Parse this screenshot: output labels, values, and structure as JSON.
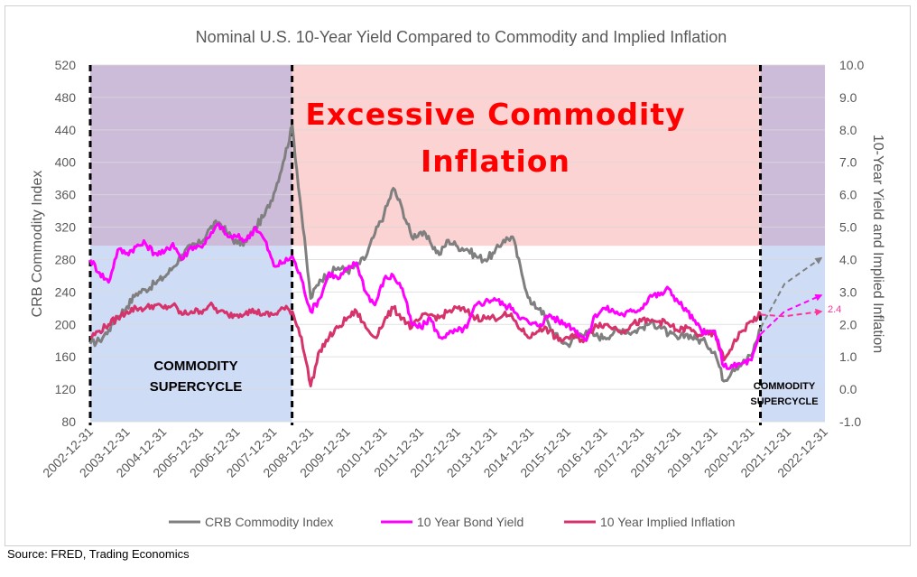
{
  "chart_data": {
    "type": "line",
    "title": "Nominal U.S. 10-Year Yield Compared to Commodity and Implied Inflation",
    "ylabel": "CRB Commodity Index",
    "ylabel_right": "10-Year Yield and Implied Inflation",
    "ylim": [
      80,
      520
    ],
    "ylim_right": [
      -1.0,
      10.0
    ],
    "yticks": [
      80,
      120,
      160,
      200,
      240,
      280,
      320,
      360,
      400,
      440,
      480,
      520
    ],
    "yticks_right": [
      "-1.0",
      "0.0",
      "1.0",
      "2.0",
      "3.0",
      "4.0",
      "5.0",
      "6.0",
      "7.0",
      "8.0",
      "9.0",
      "10.0"
    ],
    "xticks": [
      "2002-12-31",
      "2003-12-31",
      "2004-12-31",
      "2005-12-31",
      "2006-12-31",
      "2007-12-31",
      "2008-12-31",
      "2009-12-31",
      "2010-12-31",
      "2011-12-31",
      "2012-12-31",
      "2013-12-31",
      "2014-12-31",
      "2015-12-31",
      "2016-12-31",
      "2017-12-31",
      "2018-12-31",
      "2019-12-31",
      "2020-12-31",
      "2021-12-31",
      "2022-12-31"
    ],
    "grid": true,
    "legend_position": "bottom",
    "regions": [
      {
        "label": "Excessive Commodity Inflation",
        "color": "#fcd3d3",
        "y_from": 297,
        "y_to": 520
      },
      {
        "label": "COMMODITY SUPERCYCLE",
        "color": "#cfdcf6",
        "x_from": "2003-01-01",
        "x_to": "2008-06-30",
        "y_from": 80,
        "y_to": 297
      },
      {
        "label": "COMMODITY SUPERCYCLE",
        "color": "#cfdcf6",
        "x_from": "2021-03-31",
        "x_to": "2023-01-01",
        "y_from": 80,
        "y_to": 297
      }
    ],
    "vertical_lines": [
      "2003-01-01",
      "2008-06-30",
      "2021-03-31"
    ],
    "annotations": [
      {
        "text": "Excessive Commodity",
        "color": "#ff0000"
      },
      {
        "text": "Inflation",
        "color": "#ff0000"
      },
      {
        "text": "COMMODITY",
        "region": "left"
      },
      {
        "text": "SUPERCYCLE",
        "region": "left"
      },
      {
        "text": "COMMODITY",
        "region": "right"
      },
      {
        "text": "SUPERCYCLE",
        "region": "right"
      },
      {
        "text": "2.4",
        "series": "10 Year Implied Inflation",
        "color": "#ff3399"
      }
    ],
    "series": [
      {
        "name": "CRB Commodity Index",
        "axis": "left",
        "color": "#7f7f7f",
        "x": [
          2003.0,
          2003.25,
          2003.5,
          2003.75,
          2004.0,
          2004.25,
          2004.5,
          2004.75,
          2005.0,
          2005.25,
          2005.5,
          2005.75,
          2006.0,
          2006.25,
          2006.5,
          2006.75,
          2007.0,
          2007.25,
          2007.5,
          2007.75,
          2008.0,
          2008.25,
          2008.5,
          2008.75,
          2009.0,
          2009.25,
          2009.5,
          2009.75,
          2010.0,
          2010.25,
          2010.5,
          2010.75,
          2011.0,
          2011.25,
          2011.5,
          2011.75,
          2012.0,
          2012.25,
          2012.5,
          2012.75,
          2013.0,
          2013.25,
          2013.5,
          2013.75,
          2014.0,
          2014.25,
          2014.5,
          2014.75,
          2015.0,
          2015.25,
          2015.5,
          2015.75,
          2016.0,
          2016.25,
          2016.5,
          2016.75,
          2017.0,
          2017.25,
          2017.5,
          2017.75,
          2018.0,
          2018.25,
          2018.5,
          2018.75,
          2019.0,
          2019.25,
          2019.5,
          2019.75,
          2020.0,
          2020.25,
          2020.5,
          2020.75,
          2021.0,
          2021.25
        ],
        "y": [
          176,
          180,
          193,
          210,
          222,
          238,
          243,
          250,
          258,
          270,
          286,
          296,
          300,
          318,
          326,
          312,
          300,
          302,
          320,
          335,
          362,
          400,
          445,
          338,
          232,
          255,
          262,
          270,
          266,
          272,
          283,
          312,
          336,
          368,
          342,
          308,
          314,
          302,
          286,
          304,
          296,
          293,
          284,
          280,
          288,
          304,
          308,
          262,
          225,
          220,
          198,
          182,
          175,
          186,
          192,
          186,
          184,
          190,
          194,
          190,
          196,
          202,
          198,
          188,
          182,
          188,
          182,
          178,
          166,
          130,
          146,
          152,
          162,
          196
        ]
      },
      {
        "name": "10 Year Bond Yield",
        "axis": "right",
        "color": "#ff00ff",
        "x": [
          2003.0,
          2003.25,
          2003.5,
          2003.75,
          2004.0,
          2004.25,
          2004.5,
          2004.75,
          2005.0,
          2005.25,
          2005.5,
          2005.75,
          2006.0,
          2006.25,
          2006.5,
          2006.75,
          2007.0,
          2007.25,
          2007.5,
          2007.75,
          2008.0,
          2008.25,
          2008.5,
          2008.75,
          2009.0,
          2009.25,
          2009.5,
          2009.75,
          2010.0,
          2010.25,
          2010.5,
          2010.75,
          2011.0,
          2011.25,
          2011.5,
          2011.75,
          2012.0,
          2012.25,
          2012.5,
          2012.75,
          2013.0,
          2013.25,
          2013.5,
          2013.75,
          2014.0,
          2014.25,
          2014.5,
          2014.75,
          2015.0,
          2015.25,
          2015.5,
          2015.75,
          2016.0,
          2016.25,
          2016.5,
          2016.75,
          2017.0,
          2017.25,
          2017.5,
          2017.75,
          2018.0,
          2018.25,
          2018.5,
          2018.75,
          2019.0,
          2019.25,
          2019.5,
          2019.75,
          2020.0,
          2020.25,
          2020.5,
          2020.75,
          2021.0,
          2021.25
        ],
        "y": [
          4.0,
          3.6,
          3.3,
          4.3,
          4.2,
          4.4,
          4.5,
          4.2,
          4.2,
          4.5,
          4.0,
          4.4,
          4.4,
          4.7,
          5.1,
          4.7,
          4.7,
          4.6,
          5.0,
          4.6,
          3.8,
          3.9,
          4.1,
          3.4,
          2.4,
          2.8,
          3.6,
          3.4,
          3.7,
          3.9,
          3.0,
          2.6,
          3.4,
          3.5,
          3.1,
          2.0,
          1.9,
          2.2,
          1.6,
          1.7,
          1.8,
          1.9,
          2.6,
          2.7,
          2.8,
          2.6,
          2.5,
          2.2,
          2.0,
          2.0,
          2.3,
          2.1,
          2.0,
          1.8,
          1.5,
          2.3,
          2.5,
          2.4,
          2.3,
          2.4,
          2.5,
          2.9,
          2.9,
          3.1,
          2.7,
          2.4,
          2.0,
          1.7,
          1.8,
          0.7,
          0.7,
          0.8,
          0.9,
          1.7
        ]
      },
      {
        "name": "10 Year Implied Inflation",
        "axis": "right",
        "color": "#d6336c",
        "x": [
          2003.0,
          2003.25,
          2003.5,
          2003.75,
          2004.0,
          2004.25,
          2004.5,
          2004.75,
          2005.0,
          2005.25,
          2005.5,
          2005.75,
          2006.0,
          2006.25,
          2006.5,
          2006.75,
          2007.0,
          2007.25,
          2007.5,
          2007.75,
          2008.0,
          2008.25,
          2008.5,
          2008.75,
          2009.0,
          2009.25,
          2009.5,
          2009.75,
          2010.0,
          2010.25,
          2010.5,
          2010.75,
          2011.0,
          2011.25,
          2011.5,
          2011.75,
          2012.0,
          2012.25,
          2012.5,
          2012.75,
          2013.0,
          2013.25,
          2013.5,
          2013.75,
          2014.0,
          2014.25,
          2014.5,
          2014.75,
          2015.0,
          2015.25,
          2015.5,
          2015.75,
          2016.0,
          2016.25,
          2016.5,
          2016.75,
          2017.0,
          2017.25,
          2017.5,
          2017.75,
          2018.0,
          2018.25,
          2018.5,
          2018.75,
          2019.0,
          2019.25,
          2019.5,
          2019.75,
          2020.0,
          2020.25,
          2020.5,
          2020.75,
          2021.0,
          2021.25
        ],
        "y": [
          1.6,
          1.8,
          2.0,
          2.2,
          2.4,
          2.5,
          2.5,
          2.6,
          2.5,
          2.6,
          2.3,
          2.4,
          2.4,
          2.6,
          2.4,
          2.3,
          2.3,
          2.4,
          2.4,
          2.3,
          2.3,
          2.5,
          2.4,
          1.6,
          0.1,
          1.2,
          1.6,
          1.9,
          2.2,
          2.4,
          1.9,
          1.6,
          2.1,
          2.5,
          2.2,
          1.9,
          2.2,
          2.3,
          2.2,
          2.4,
          2.5,
          2.4,
          2.2,
          2.2,
          2.2,
          2.3,
          2.2,
          1.8,
          1.6,
          1.9,
          1.8,
          1.5,
          1.6,
          1.6,
          1.5,
          2.0,
          2.0,
          1.9,
          1.8,
          2.0,
          2.1,
          2.1,
          2.1,
          2.0,
          1.8,
          1.9,
          1.7,
          1.7,
          1.7,
          0.9,
          1.4,
          1.8,
          2.1,
          2.3
        ]
      }
    ],
    "projections": [
      {
        "series": "CRB Commodity Index",
        "x": [
          2021.25,
          2021.9,
          2022.9
        ],
        "y": [
          196,
          250,
          282
        ]
      },
      {
        "series": "10 Year Bond Yield",
        "x": [
          2021.25,
          2021.9,
          2022.9
        ],
        "y": [
          1.7,
          2.4,
          2.9
        ]
      },
      {
        "series": "10 Year Implied Inflation",
        "x": [
          2021.25,
          2021.9,
          2022.9
        ],
        "y": [
          2.3,
          2.25,
          2.4
        ]
      }
    ]
  },
  "source_note": "Source: FRED, Trading Economics"
}
